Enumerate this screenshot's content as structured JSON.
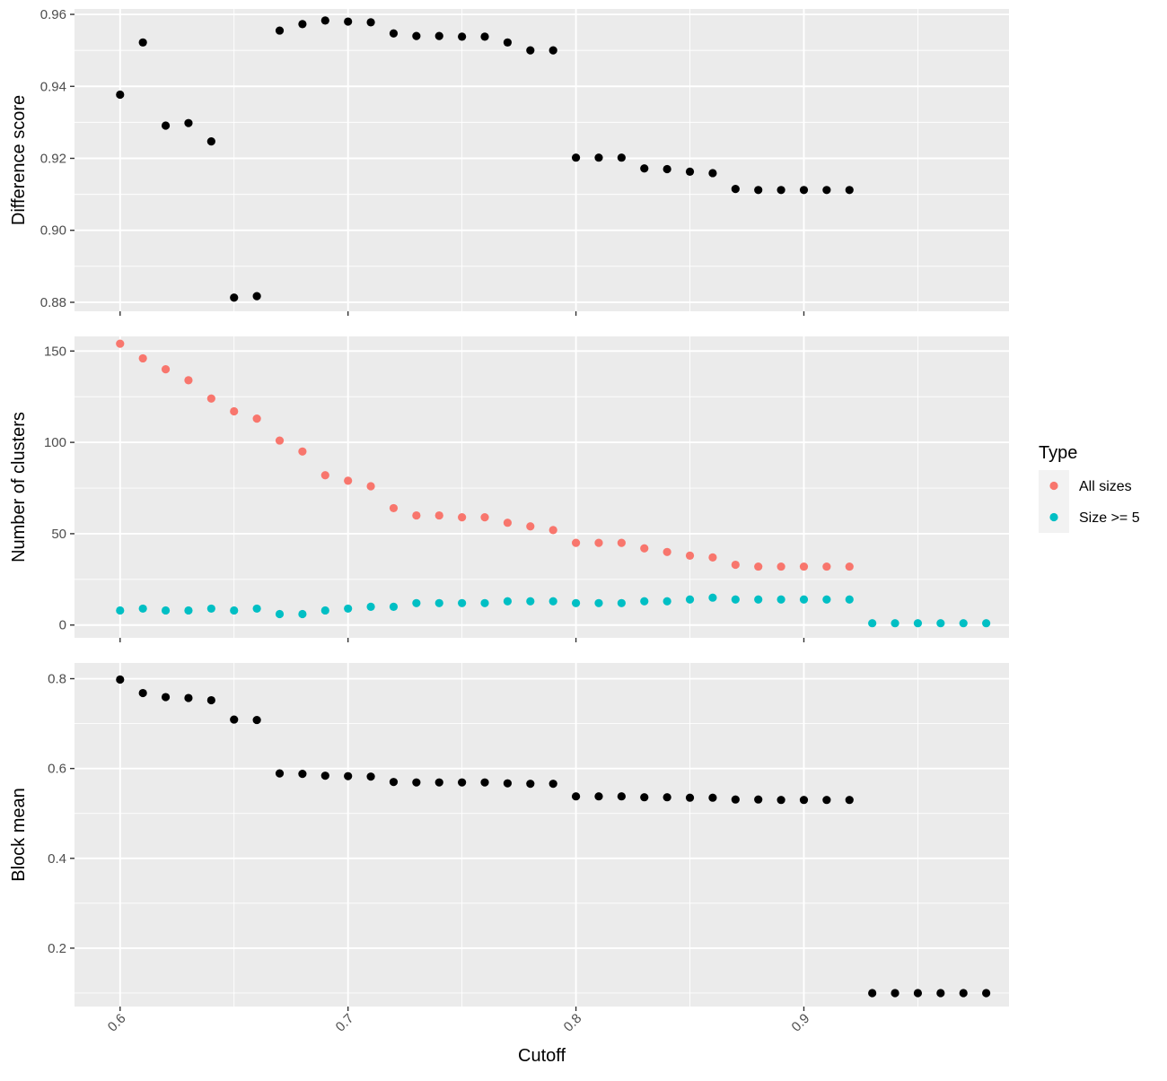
{
  "chart_data": {
    "type": "scatter",
    "facets": "stacked-vertical-shared-x",
    "xlabel": "Cutoff",
    "xlim": [
      0.58,
      0.99
    ],
    "x_ticks": [
      {
        "value": 0.6,
        "label": "0.6"
      },
      {
        "value": 0.7,
        "label": "0.7"
      },
      {
        "value": 0.8,
        "label": "0.8"
      },
      {
        "value": 0.9,
        "label": "0.9"
      }
    ],
    "x_minor": [
      0.65,
      0.75,
      0.85,
      0.95
    ],
    "legend": {
      "title": "Type",
      "placement": "right",
      "entries": [
        {
          "label": "All sizes",
          "color": "#F8766D"
        },
        {
          "label": "Size >= 5",
          "color": "#00BFC4"
        }
      ]
    },
    "panels": [
      {
        "ylabel": "Difference score",
        "ylim": [
          0.8775,
          0.9615
        ],
        "y_ticks": [
          {
            "value": 0.88,
            "label": "0.88"
          },
          {
            "value": 0.9,
            "label": "0.90"
          },
          {
            "value": 0.92,
            "label": "0.92"
          },
          {
            "value": 0.94,
            "label": "0.94"
          },
          {
            "value": 0.96,
            "label": "0.96"
          }
        ],
        "y_minor": [
          0.89,
          0.91,
          0.93,
          0.95
        ],
        "series": [
          {
            "color": "#000000",
            "x": [
              0.6,
              0.61,
              0.62,
              0.63,
              0.64,
              0.65,
              0.66,
              0.67,
              0.68,
              0.69,
              0.7,
              0.71,
              0.72,
              0.73,
              0.74,
              0.75,
              0.76,
              0.77,
              0.78,
              0.79,
              0.8,
              0.81,
              0.82,
              0.83,
              0.84,
              0.85,
              0.86,
              0.87,
              0.88,
              0.89,
              0.9,
              0.91,
              0.92
            ],
            "y": [
              0.9377,
              0.9522,
              0.9291,
              0.9298,
              0.9247,
              0.8813,
              0.8817,
              0.9555,
              0.9573,
              0.9583,
              0.958,
              0.9578,
              0.9547,
              0.954,
              0.954,
              0.9538,
              0.9538,
              0.9522,
              0.95,
              0.95,
              0.9202,
              0.9202,
              0.9202,
              0.9172,
              0.917,
              0.9163,
              0.9159,
              0.9115,
              0.9112,
              0.9112,
              0.9112,
              0.9112,
              0.9112
            ]
          }
        ]
      },
      {
        "ylabel": "Number of clusters",
        "ylim": [
          -7,
          158
        ],
        "y_ticks": [
          {
            "value": 0,
            "label": "0"
          },
          {
            "value": 50,
            "label": "50"
          },
          {
            "value": 100,
            "label": "100"
          },
          {
            "value": 150,
            "label": "150"
          }
        ],
        "y_minor": [
          25,
          75,
          125
        ],
        "series": [
          {
            "name": "All sizes",
            "color": "#F8766D",
            "x": [
              0.6,
              0.61,
              0.62,
              0.63,
              0.64,
              0.65,
              0.66,
              0.67,
              0.68,
              0.69,
              0.7,
              0.71,
              0.72,
              0.73,
              0.74,
              0.75,
              0.76,
              0.77,
              0.78,
              0.79,
              0.8,
              0.81,
              0.82,
              0.83,
              0.84,
              0.85,
              0.86,
              0.87,
              0.88,
              0.89,
              0.9,
              0.91,
              0.92
            ],
            "y": [
              154,
              146,
              140,
              134,
              124,
              117,
              113,
              101,
              95,
              82,
              79,
              76,
              64,
              60,
              60,
              59,
              59,
              56,
              54,
              52,
              45,
              45,
              45,
              42,
              40,
              38,
              37,
              33,
              32,
              32,
              32,
              32,
              32
            ]
          },
          {
            "name": "Size >= 5",
            "color": "#00BFC4",
            "x": [
              0.6,
              0.61,
              0.62,
              0.63,
              0.64,
              0.65,
              0.66,
              0.67,
              0.68,
              0.69,
              0.7,
              0.71,
              0.72,
              0.73,
              0.74,
              0.75,
              0.76,
              0.77,
              0.78,
              0.79,
              0.8,
              0.81,
              0.82,
              0.83,
              0.84,
              0.85,
              0.86,
              0.87,
              0.88,
              0.89,
              0.9,
              0.91,
              0.92,
              0.93,
              0.94,
              0.95,
              0.96,
              0.97,
              0.98
            ],
            "y": [
              8,
              9,
              8,
              8,
              9,
              8,
              9,
              6,
              6,
              8,
              9,
              10,
              10,
              12,
              12,
              12,
              12,
              13,
              13,
              13,
              12,
              12,
              12,
              13,
              13,
              14,
              15,
              14,
              14,
              14,
              14,
              14,
              14,
              1,
              1,
              1,
              1,
              1,
              1
            ]
          }
        ]
      },
      {
        "ylabel": "Block mean",
        "ylim": [
          0.07,
          0.835
        ],
        "y_ticks": [
          {
            "value": 0.2,
            "label": "0.2"
          },
          {
            "value": 0.4,
            "label": "0.4"
          },
          {
            "value": 0.6,
            "label": "0.6"
          },
          {
            "value": 0.8,
            "label": "0.8"
          }
        ],
        "y_minor": [
          0.1,
          0.3,
          0.5,
          0.7
        ],
        "series": [
          {
            "color": "#000000",
            "x": [
              0.6,
              0.61,
              0.62,
              0.63,
              0.64,
              0.65,
              0.66,
              0.67,
              0.68,
              0.69,
              0.7,
              0.71,
              0.72,
              0.73,
              0.74,
              0.75,
              0.76,
              0.77,
              0.78,
              0.79,
              0.8,
              0.81,
              0.82,
              0.83,
              0.84,
              0.85,
              0.86,
              0.87,
              0.88,
              0.89,
              0.9,
              0.91,
              0.92,
              0.93,
              0.94,
              0.95,
              0.96,
              0.97,
              0.98
            ],
            "y": [
              0.798,
              0.768,
              0.759,
              0.757,
              0.752,
              0.709,
              0.708,
              0.589,
              0.588,
              0.584,
              0.583,
              0.582,
              0.57,
              0.569,
              0.569,
              0.569,
              0.569,
              0.567,
              0.566,
              0.566,
              0.538,
              0.538,
              0.538,
              0.536,
              0.536,
              0.535,
              0.535,
              0.531,
              0.531,
              0.53,
              0.53,
              0.53,
              0.53,
              0.1,
              0.1,
              0.1,
              0.1,
              0.1,
              0.1
            ]
          }
        ]
      }
    ]
  }
}
